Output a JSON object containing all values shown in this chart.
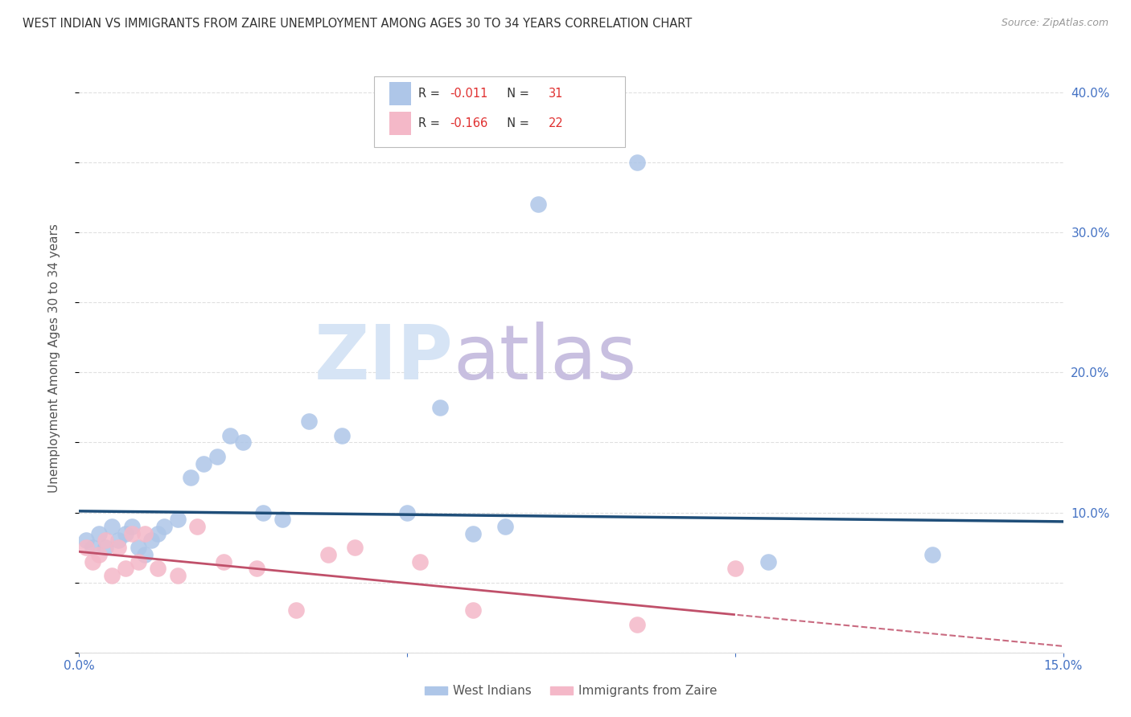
{
  "title": "WEST INDIAN VS IMMIGRANTS FROM ZAIRE UNEMPLOYMENT AMONG AGES 30 TO 34 YEARS CORRELATION CHART",
  "source": "Source: ZipAtlas.com",
  "ylabel": "Unemployment Among Ages 30 to 34 years",
  "xlim": [
    0.0,
    0.15
  ],
  "ylim": [
    0.0,
    0.42
  ],
  "xticks": [
    0.0,
    0.05,
    0.1,
    0.15
  ],
  "xtick_labels": [
    "0.0%",
    "",
    "",
    "15.0%"
  ],
  "yticks_right": [
    0.1,
    0.2,
    0.3,
    0.4
  ],
  "ytick_labels_right": [
    "10.0%",
    "20.0%",
    "30.0%",
    "40.0%"
  ],
  "west_indians_x": [
    0.001,
    0.002,
    0.003,
    0.004,
    0.005,
    0.006,
    0.007,
    0.008,
    0.009,
    0.01,
    0.011,
    0.012,
    0.013,
    0.015,
    0.017,
    0.019,
    0.021,
    0.023,
    0.025,
    0.028,
    0.031,
    0.035,
    0.04,
    0.05,
    0.055,
    0.06,
    0.065,
    0.07,
    0.085,
    0.105,
    0.13
  ],
  "west_indians_y": [
    0.08,
    0.075,
    0.085,
    0.075,
    0.09,
    0.08,
    0.085,
    0.09,
    0.075,
    0.07,
    0.08,
    0.085,
    0.09,
    0.095,
    0.125,
    0.135,
    0.14,
    0.155,
    0.15,
    0.1,
    0.095,
    0.165,
    0.155,
    0.1,
    0.175,
    0.085,
    0.09,
    0.32,
    0.35,
    0.065,
    0.07
  ],
  "zaire_x": [
    0.001,
    0.002,
    0.003,
    0.004,
    0.005,
    0.006,
    0.007,
    0.008,
    0.009,
    0.01,
    0.012,
    0.015,
    0.018,
    0.022,
    0.027,
    0.033,
    0.038,
    0.042,
    0.052,
    0.06,
    0.085,
    0.1
  ],
  "zaire_y": [
    0.075,
    0.065,
    0.07,
    0.08,
    0.055,
    0.075,
    0.06,
    0.085,
    0.065,
    0.085,
    0.06,
    0.055,
    0.09,
    0.065,
    0.06,
    0.03,
    0.07,
    0.075,
    0.065,
    0.03,
    0.02,
    0.06
  ],
  "west_indians_R": -0.011,
  "west_indians_N": 31,
  "zaire_R": -0.166,
  "zaire_N": 22,
  "blue_color": "#aec6e8",
  "blue_line_color": "#1f4e79",
  "pink_color": "#f4b8c8",
  "pink_line_color": "#c0506a",
  "watermark_zip_color": "#d6e4f5",
  "watermark_atlas_color": "#c8bfe0",
  "grid_color": "#cccccc",
  "right_axis_color": "#4472c4",
  "legend_R_color": "#e03030"
}
